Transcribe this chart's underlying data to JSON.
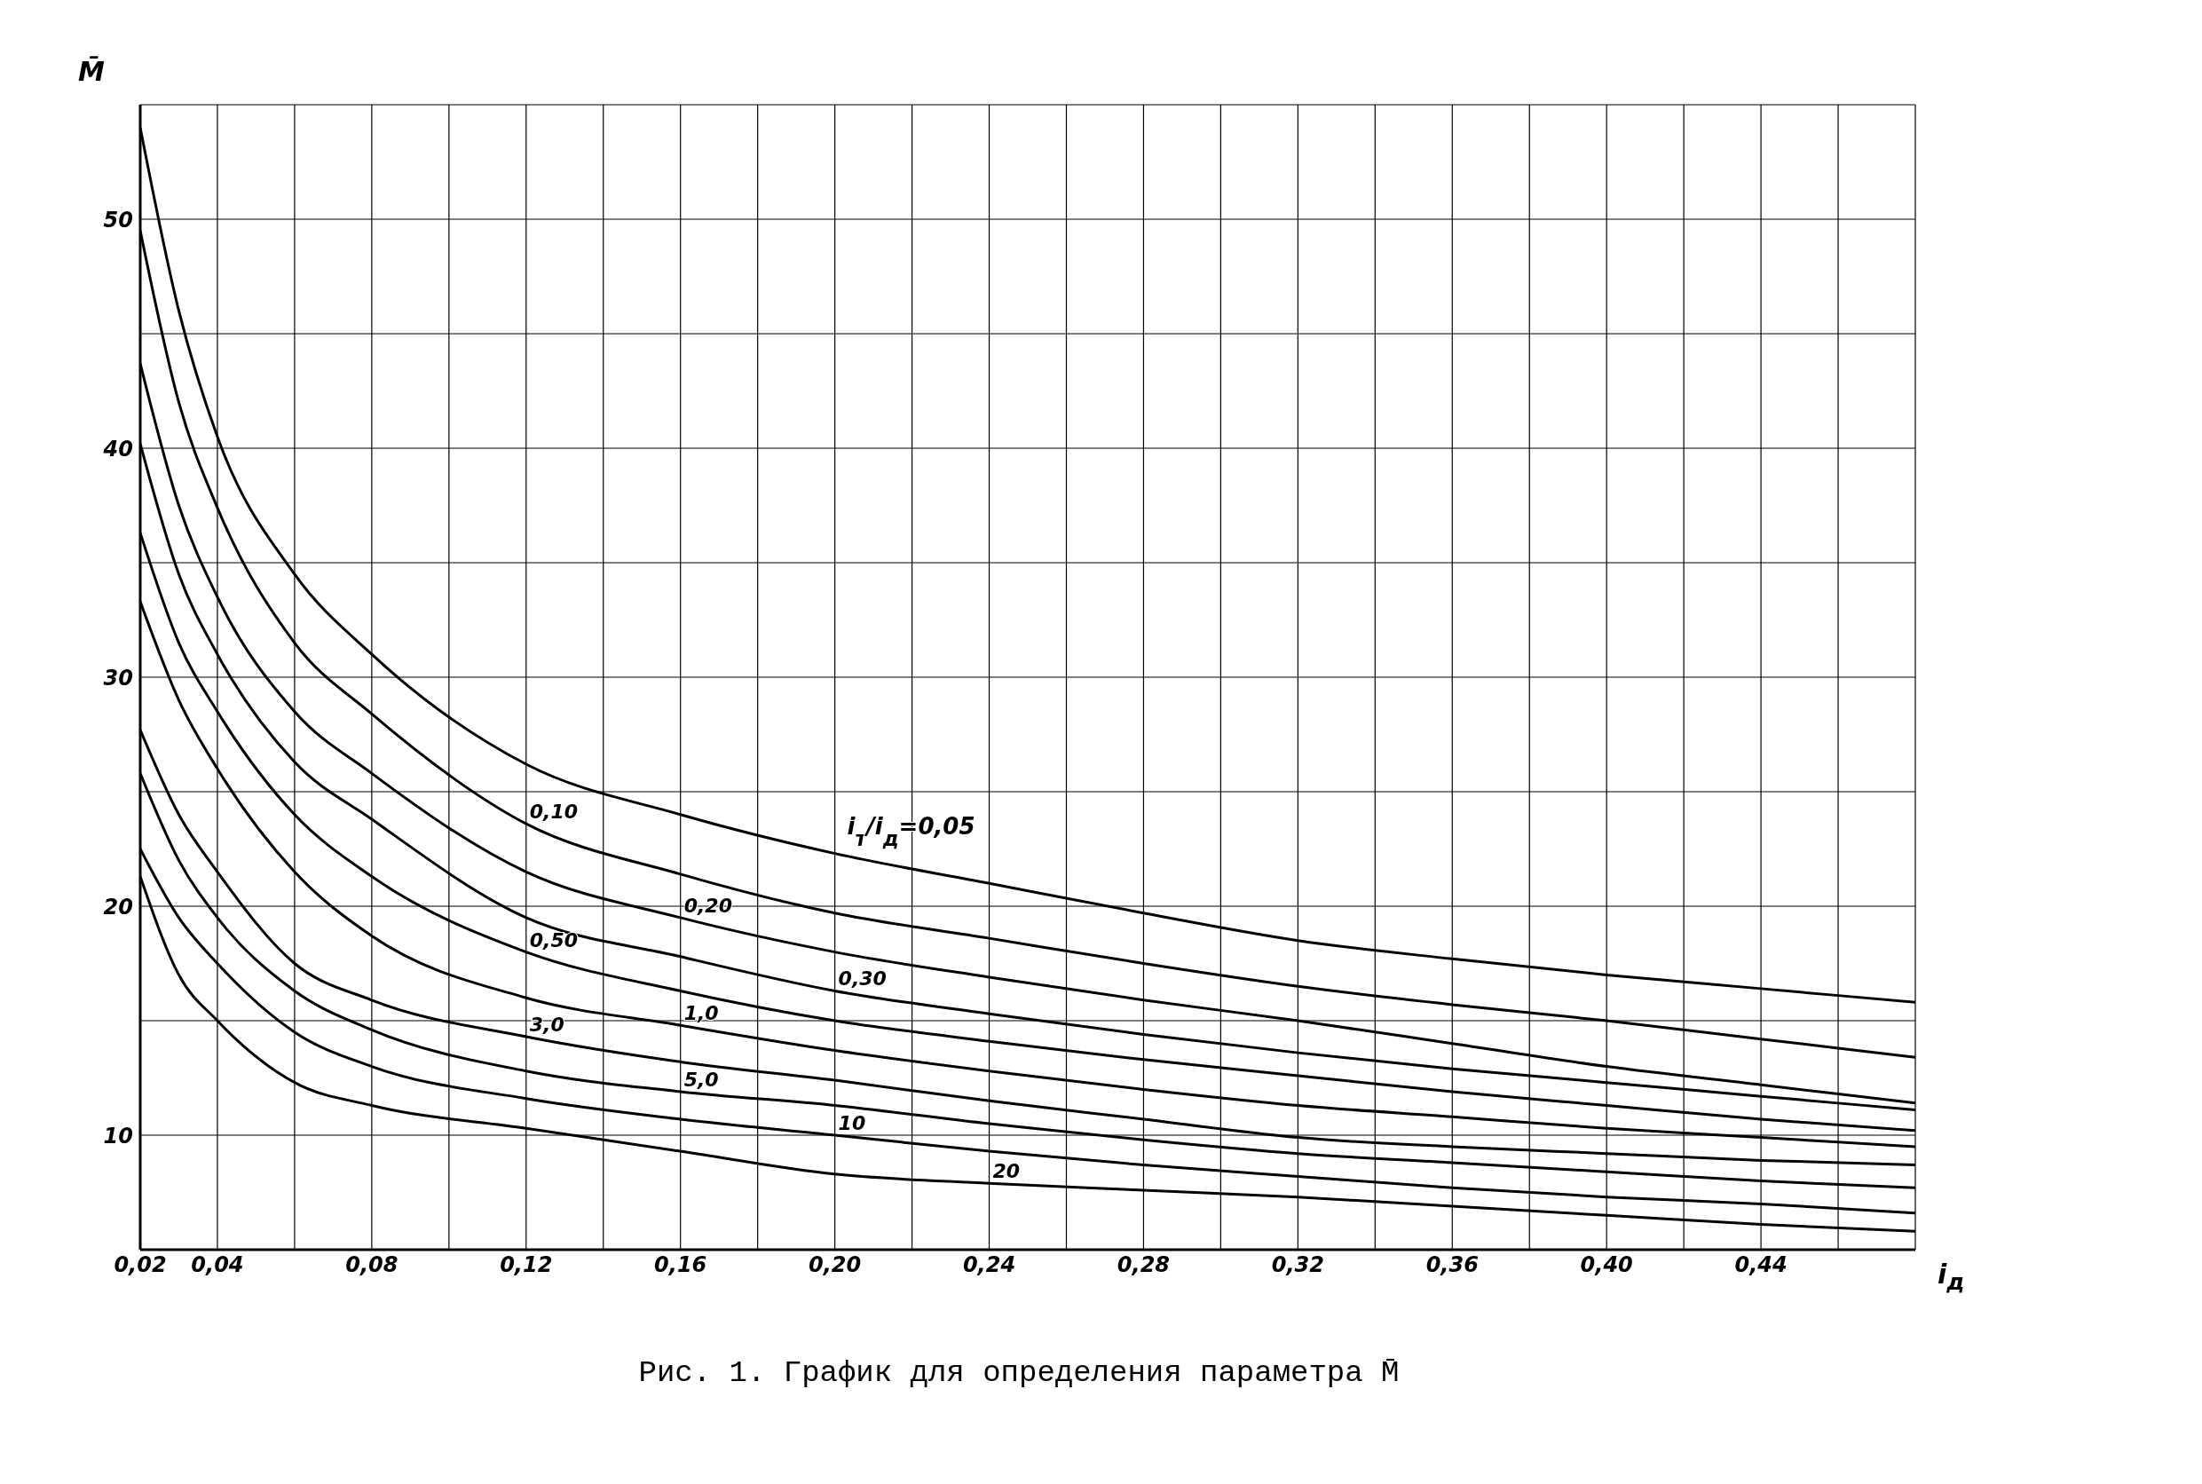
{
  "chart_data": {
    "type": "line",
    "x": [
      0.02,
      0.03,
      0.04,
      0.06,
      0.08,
      0.12,
      0.16,
      0.2,
      0.24,
      0.28,
      0.32,
      0.36,
      0.4,
      0.44,
      0.48
    ],
    "series": [
      {
        "name": "0,05",
        "color": "#000000",
        "values": [
          54,
          46,
          40.5,
          34.5,
          31,
          26.2,
          24,
          22.3,
          21,
          19.7,
          18.5,
          17.7,
          17,
          16.4,
          15.8
        ]
      },
      {
        "name": "0,10",
        "color": "#000000",
        "values": [
          49.5,
          42,
          37.4,
          31.5,
          28.4,
          23.6,
          21.4,
          19.7,
          18.6,
          17.5,
          16.5,
          15.7,
          15,
          14.2,
          13.4
        ]
      },
      {
        "name": "0,20",
        "color": "#000000",
        "values": [
          43.7,
          37.5,
          33.5,
          28.5,
          25.8,
          21.5,
          19.5,
          18,
          16.9,
          15.9,
          15,
          14,
          13,
          12.2,
          11.4
        ]
      },
      {
        "name": "0,30",
        "color": "#000000",
        "values": [
          40.2,
          34.5,
          31,
          26.3,
          23.8,
          19.5,
          17.8,
          16.3,
          15.3,
          14.4,
          13.6,
          12.9,
          12.3,
          11.7,
          11.1
        ]
      },
      {
        "name": "0,50",
        "color": "#000000",
        "values": [
          36.3,
          31.5,
          28.5,
          24,
          21.3,
          18,
          16.3,
          15,
          14.1,
          13.3,
          12.6,
          11.9,
          11.3,
          10.7,
          10.2
        ]
      },
      {
        "name": "1,0",
        "color": "#000000",
        "values": [
          33.3,
          29,
          26,
          21.5,
          18.7,
          16,
          14.8,
          13.7,
          12.8,
          12,
          11.3,
          10.8,
          10.3,
          9.9,
          9.5
        ]
      },
      {
        "name": "3,0",
        "color": "#000000",
        "values": [
          27.7,
          24,
          21.5,
          17.5,
          15.9,
          14.3,
          13.2,
          12.4,
          11.5,
          10.7,
          9.9,
          9.5,
          9.2,
          8.9,
          8.7
        ]
      },
      {
        "name": "5,0",
        "color": "#000000",
        "values": [
          25.8,
          22,
          19.5,
          16.3,
          14.6,
          12.8,
          11.9,
          11.3,
          10.5,
          9.8,
          9.2,
          8.8,
          8.4,
          8,
          7.7
        ]
      },
      {
        "name": "10",
        "color": "#000000",
        "values": [
          22.5,
          19.5,
          17.5,
          14.5,
          13,
          11.6,
          10.7,
          10,
          9.3,
          8.7,
          8.2,
          7.7,
          7.3,
          7,
          6.6
        ]
      },
      {
        "name": "20",
        "color": "#000000",
        "values": [
          21.3,
          17,
          15,
          12.3,
          11.3,
          10.3,
          9.3,
          8.3,
          7.9,
          7.6,
          7.3,
          6.9,
          6.5,
          6.1,
          5.8
        ]
      }
    ],
    "legend_title": "i$_{т}$/i$_{д}$=",
    "xlabel": "i$_{д}$",
    "ylabel": "M̄",
    "annotations": [
      "Рис. 1. График для определения параметра M̄"
    ],
    "xlim": [
      0.02,
      0.48
    ],
    "xticks": [
      {
        "value": 0.02,
        "label": "0,02"
      },
      {
        "value": 0.04,
        "label": "0,04"
      },
      {
        "value": 0.06,
        "label": null
      },
      {
        "value": 0.08,
        "label": "0,08"
      },
      {
        "value": 0.1,
        "label": null
      },
      {
        "value": 0.12,
        "label": "0,12"
      },
      {
        "value": 0.14,
        "label": null
      },
      {
        "value": 0.16,
        "label": "0,16"
      },
      {
        "value": 0.18,
        "label": null
      },
      {
        "value": 0.2,
        "label": "0,20"
      },
      {
        "value": 0.22,
        "label": null
      },
      {
        "value": 0.24,
        "label": "0,24"
      },
      {
        "value": 0.26,
        "label": null
      },
      {
        "value": 0.28,
        "label": "0,28"
      },
      {
        "value": 0.3,
        "label": null
      },
      {
        "value": 0.32,
        "label": "0,32"
      },
      {
        "value": 0.34,
        "label": null
      },
      {
        "value": 0.36,
        "label": "0,36"
      },
      {
        "value": 0.38,
        "label": null
      },
      {
        "value": 0.4,
        "label": "0,40"
      },
      {
        "value": 0.42,
        "label": null
      },
      {
        "value": 0.44,
        "label": "0,44"
      },
      {
        "value": 0.46,
        "label": null
      },
      {
        "value": 0.48,
        "label": null
      }
    ],
    "ylim": [
      5,
      55
    ],
    "yticks": [
      {
        "value": 5,
        "label": null
      },
      10,
      {
        "value": 15,
        "label": null
      },
      20,
      {
        "value": 25,
        "label": null
      },
      30,
      {
        "value": 35,
        "label": null
      },
      40,
      {
        "value": 45,
        "label": null
      },
      50,
      {
        "value": 55,
        "label": null
      }
    ],
    "grid": true,
    "marker": "none",
    "line_style": "solid"
  }
}
